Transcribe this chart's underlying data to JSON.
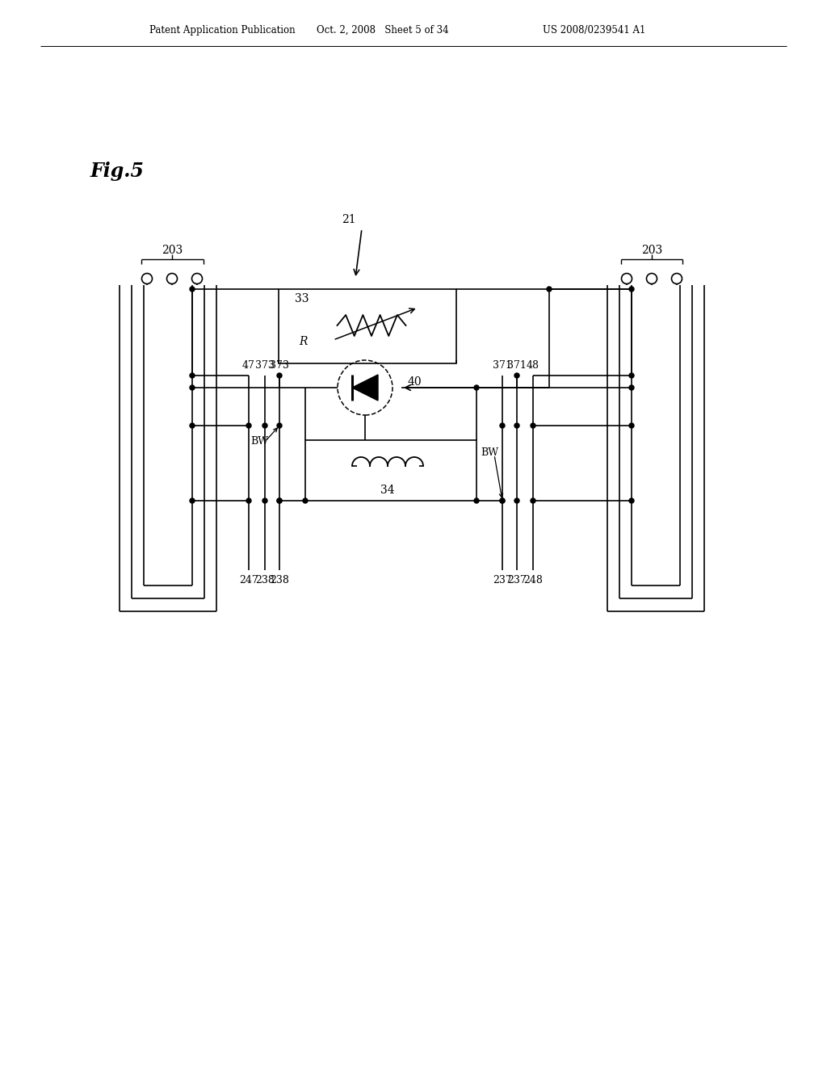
{
  "bg_color": "#ffffff",
  "header_left": "Patent Application Publication",
  "header_mid": "Oct. 2, 2008   Sheet 5 of 34",
  "header_right": "US 2008/0239541 A1",
  "fig_label": "Fig.5",
  "label_21": "21",
  "label_33": "33",
  "label_R": "R",
  "label_40": "40",
  "label_34": "34",
  "label_BW": "BW",
  "label_203": "203",
  "left_top_labels": [
    "47",
    "373",
    "373"
  ],
  "left_bot_labels": [
    "247",
    "238",
    "238"
  ],
  "right_top_labels": [
    "371",
    "371",
    "48"
  ],
  "right_bot_labels": [
    "237",
    "237",
    "248"
  ]
}
